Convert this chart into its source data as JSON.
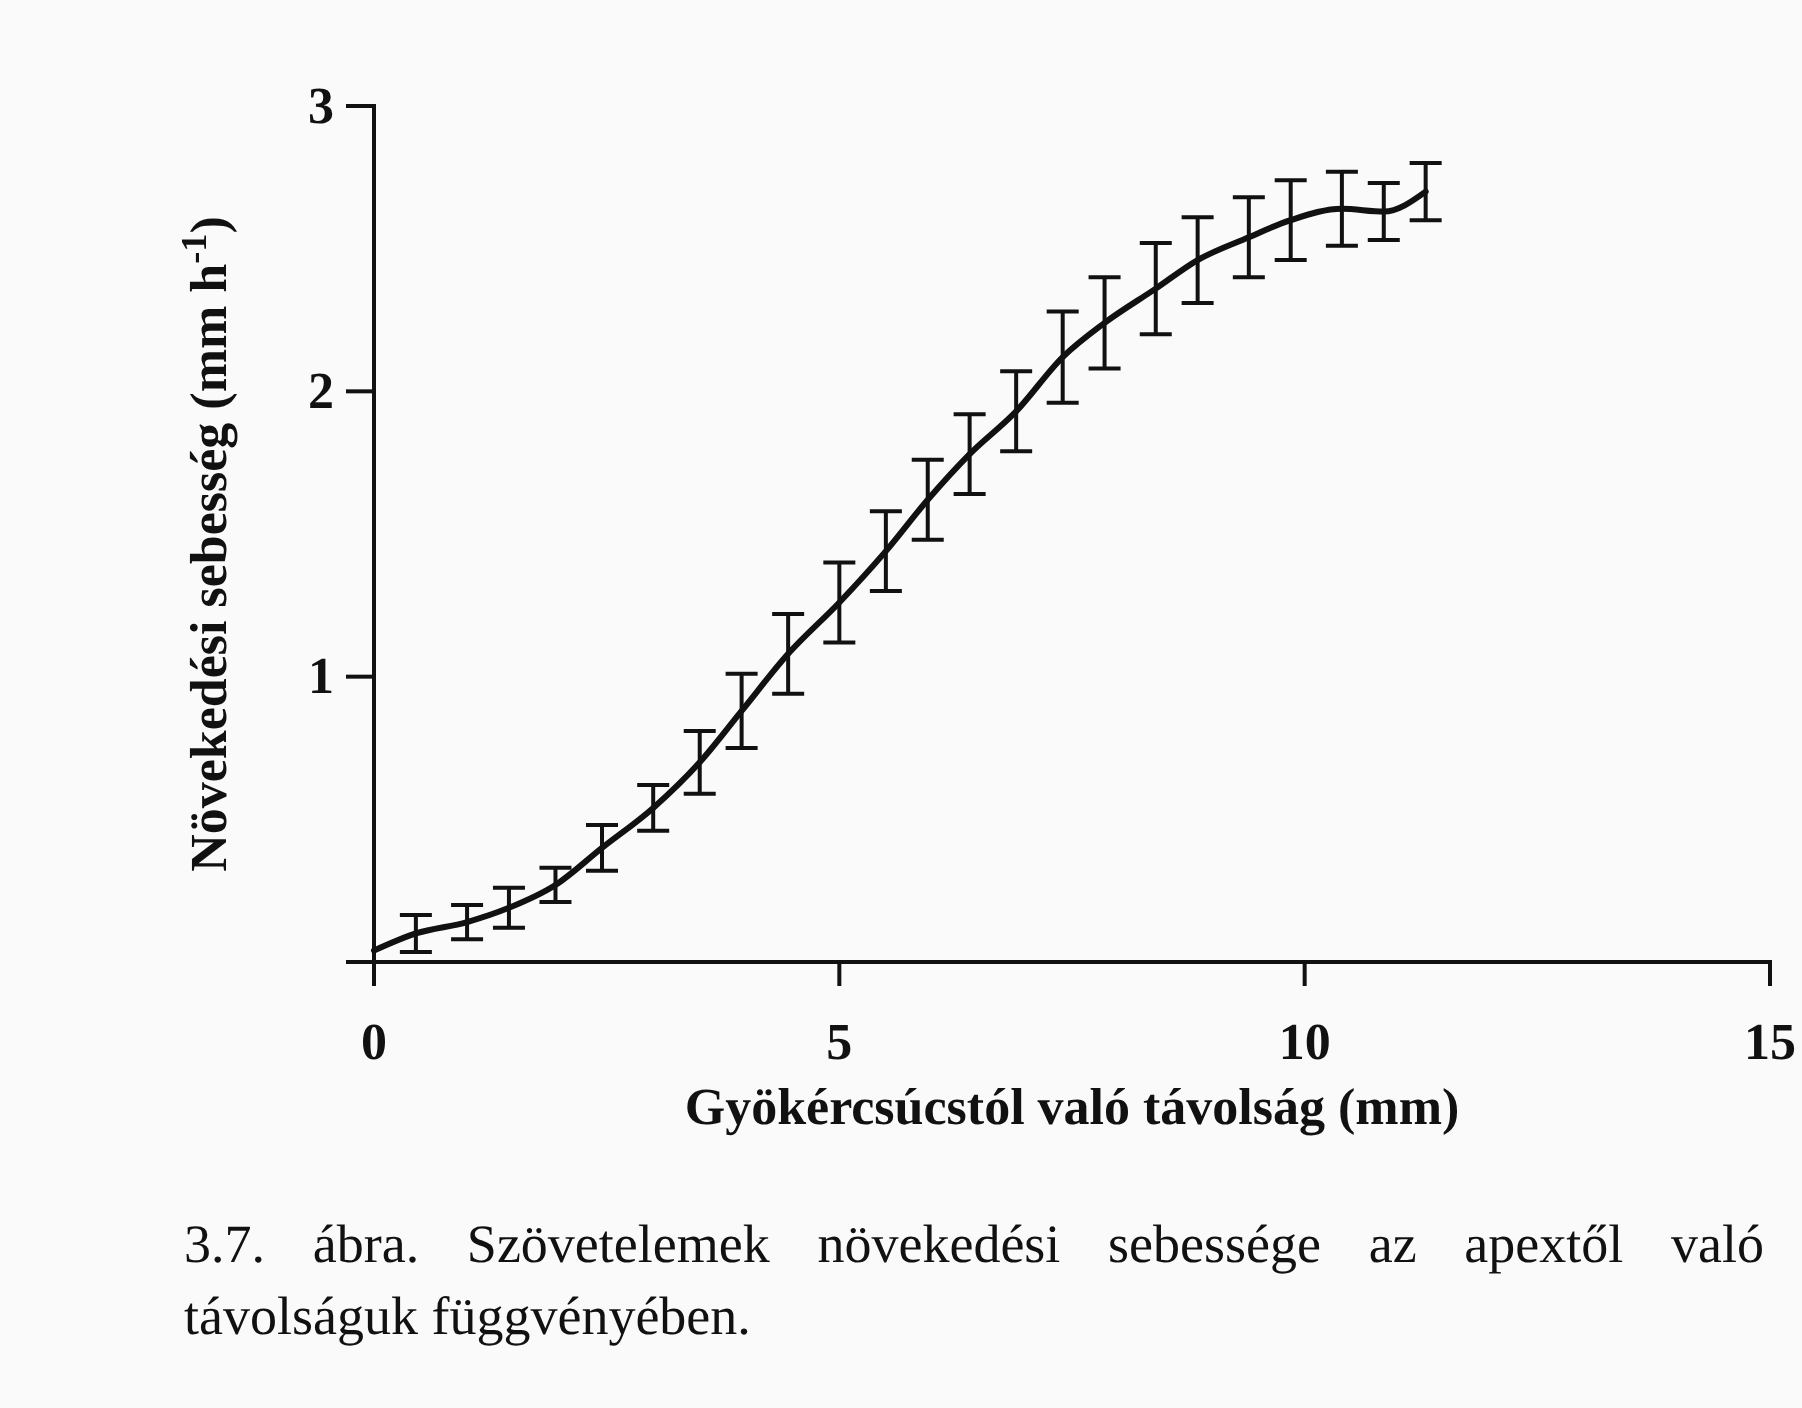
{
  "chart_data": {
    "type": "line",
    "xlabel": "Gyökércsúcstól való távolság (mm)",
    "ylabel": "Növekedési sebesség (mm h$^{-1}$)",
    "annotations": [
      "3.7. ábra. Szövetelemek növekedési sebessége az apextől való távolságuk függvényében."
    ],
    "xlim": [
      0,
      15
    ],
    "xticks": [
      0,
      5,
      10,
      15
    ],
    "ylim": [
      0,
      3
    ],
    "yticks": [
      1,
      2,
      3
    ],
    "grid": false,
    "marker": "none",
    "line_style": "solid",
    "series": [
      {
        "color": "#111111",
        "x": [
          0,
          0.45,
          1.0,
          1.45,
          1.95,
          2.45,
          3.0,
          3.5,
          3.95,
          4.45,
          5.0,
          5.5,
          5.95,
          6.4,
          6.9,
          7.4,
          7.85,
          8.4,
          8.85,
          9.4,
          9.85,
          10.4,
          10.85,
          11.3
        ],
        "values": [
          0.04,
          0.1,
          0.14,
          0.19,
          0.27,
          0.4,
          0.54,
          0.7,
          0.88,
          1.08,
          1.26,
          1.44,
          1.62,
          1.78,
          1.93,
          2.12,
          2.24,
          2.36,
          2.46,
          2.54,
          2.6,
          2.64,
          2.63,
          2.7
        ],
        "errors": [
          null,
          0.065,
          0.06,
          0.07,
          0.06,
          0.08,
          0.08,
          0.11,
          0.13,
          0.14,
          0.14,
          0.14,
          0.14,
          0.14,
          0.14,
          0.16,
          0.16,
          0.16,
          0.15,
          0.14,
          0.14,
          0.13,
          0.1,
          0.1
        ]
      }
    ]
  }
}
